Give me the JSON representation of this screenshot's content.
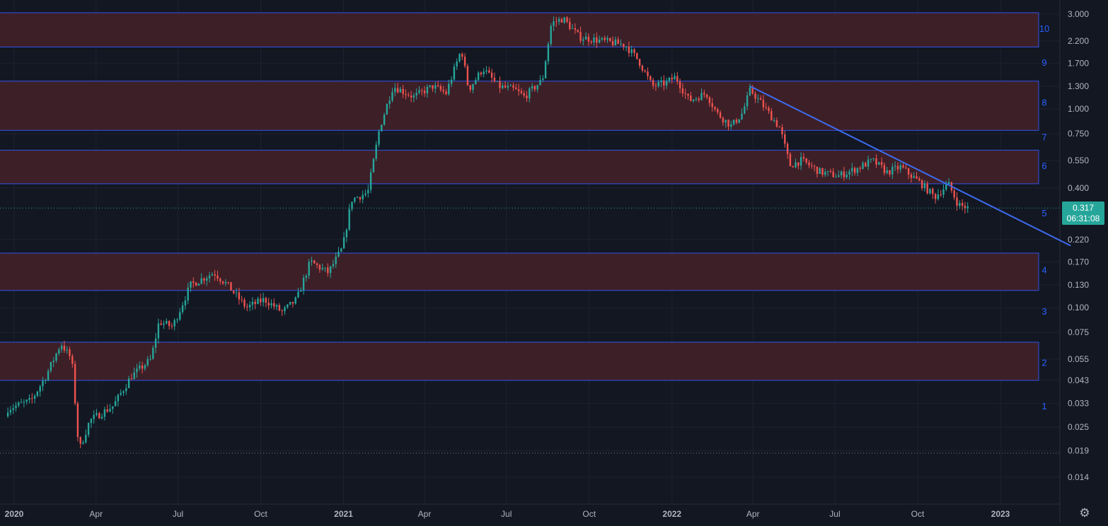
{
  "chart_data": {
    "type": "candlestick",
    "y_scale": "log",
    "grid": true,
    "y_ticks": [
      "3.000",
      "2.200",
      "1.700",
      "1.300",
      "1.000",
      "0.750",
      "0.550",
      "0.400",
      "0.220",
      "0.170",
      "0.130",
      "0.100",
      "0.075",
      "0.055",
      "0.043",
      "0.033",
      "0.025",
      "0.019",
      "0.014"
    ],
    "x_ticks": [
      {
        "label": "2020",
        "date": "2020-01-01",
        "bold": true
      },
      {
        "label": "Apr",
        "date": "2020-04-01",
        "bold": false
      },
      {
        "label": "Jul",
        "date": "2020-07-01",
        "bold": false
      },
      {
        "label": "Oct",
        "date": "2020-10-01",
        "bold": false
      },
      {
        "label": "2021",
        "date": "2021-01-01",
        "bold": true
      },
      {
        "label": "Apr",
        "date": "2021-04-01",
        "bold": false
      },
      {
        "label": "Jul",
        "date": "2021-07-01",
        "bold": false
      },
      {
        "label": "Oct",
        "date": "2021-10-01",
        "bold": false
      },
      {
        "label": "2022",
        "date": "2022-01-01",
        "bold": true
      },
      {
        "label": "Apr",
        "date": "2022-04-01",
        "bold": false
      },
      {
        "label": "Jul",
        "date": "2022-07-01",
        "bold": false
      },
      {
        "label": "Oct",
        "date": "2022-10-01",
        "bold": false
      },
      {
        "label": "2023",
        "date": "2023-01-01",
        "bold": true
      }
    ],
    "price_path": [
      [
        "2019-12-25",
        0.031
      ],
      [
        "2020-01-20",
        0.034
      ],
      [
        "2020-02-05",
        0.045
      ],
      [
        "2020-02-22",
        0.066
      ],
      [
        "2020-03-05",
        0.055
      ],
      [
        "2020-03-13",
        0.019
      ],
      [
        "2020-03-25",
        0.027
      ],
      [
        "2020-04-20",
        0.032
      ],
      [
        "2020-05-10",
        0.045
      ],
      [
        "2020-06-01",
        0.055
      ],
      [
        "2020-06-10",
        0.085
      ],
      [
        "2020-06-25",
        0.08
      ],
      [
        "2020-07-15",
        0.13
      ],
      [
        "2020-08-10",
        0.15
      ],
      [
        "2020-08-25",
        0.13
      ],
      [
        "2020-09-15",
        0.1
      ],
      [
        "2020-10-05",
        0.11
      ],
      [
        "2020-10-25",
        0.095
      ],
      [
        "2020-11-10",
        0.11
      ],
      [
        "2020-11-25",
        0.17
      ],
      [
        "2020-12-15",
        0.15
      ],
      [
        "2020-12-31",
        0.2
      ],
      [
        "2021-01-10",
        0.35
      ],
      [
        "2021-01-28",
        0.38
      ],
      [
        "2021-02-10",
        0.8
      ],
      [
        "2021-02-25",
        1.3
      ],
      [
        "2021-03-20",
        1.15
      ],
      [
        "2021-04-10",
        1.3
      ],
      [
        "2021-04-25",
        1.2
      ],
      [
        "2021-05-12",
        2.0
      ],
      [
        "2021-05-20",
        1.25
      ],
      [
        "2021-06-05",
        1.6
      ],
      [
        "2021-06-22",
        1.3
      ],
      [
        "2021-07-10",
        1.25
      ],
      [
        "2021-07-21",
        1.15
      ],
      [
        "2021-08-10",
        1.4
      ],
      [
        "2021-08-20",
        2.7
      ],
      [
        "2021-09-02",
        2.85
      ],
      [
        "2021-09-20",
        2.3
      ],
      [
        "2021-10-15",
        2.2
      ],
      [
        "2021-11-10",
        2.1
      ],
      [
        "2021-11-25",
        1.75
      ],
      [
        "2021-12-10",
        1.3
      ],
      [
        "2021-12-25",
        1.35
      ],
      [
        "2022-01-05",
        1.45
      ],
      [
        "2022-01-20",
        1.1
      ],
      [
        "2022-02-08",
        1.2
      ],
      [
        "2022-02-20",
        0.95
      ],
      [
        "2022-03-08",
        0.82
      ],
      [
        "2022-03-20",
        0.95
      ],
      [
        "2022-03-29",
        1.25
      ],
      [
        "2022-04-15",
        1.0
      ],
      [
        "2022-05-01",
        0.8
      ],
      [
        "2022-05-12",
        0.52
      ],
      [
        "2022-05-25",
        0.55
      ],
      [
        "2022-06-15",
        0.48
      ],
      [
        "2022-07-05",
        0.46
      ],
      [
        "2022-07-25",
        0.5
      ],
      [
        "2022-08-12",
        0.55
      ],
      [
        "2022-08-28",
        0.48
      ],
      [
        "2022-09-12",
        0.51
      ],
      [
        "2022-10-05",
        0.42
      ],
      [
        "2022-10-20",
        0.36
      ],
      [
        "2022-11-04",
        0.42
      ],
      [
        "2022-11-15",
        0.33
      ],
      [
        "2022-11-26",
        0.317
      ]
    ],
    "zones": [
      {
        "label": "10",
        "low": 2.05,
        "high": 3.05
      },
      {
        "label": "8",
        "low": 0.78,
        "high": 1.38
      },
      {
        "label": "6",
        "low": 0.42,
        "high": 0.62
      },
      {
        "label": "4",
        "low": 0.122,
        "high": 0.188
      },
      {
        "label": "2",
        "low": 0.043,
        "high": 0.067
      }
    ],
    "level_numbers": [
      {
        "label": "10",
        "price": 2.55
      },
      {
        "label": "9",
        "price": 1.72
      },
      {
        "label": "8",
        "price": 1.08
      },
      {
        "label": "7",
        "price": 0.725
      },
      {
        "label": "6",
        "price": 0.52
      },
      {
        "label": "5",
        "price": 0.3
      },
      {
        "label": "4",
        "price": 0.155
      },
      {
        "label": "3",
        "price": 0.096
      },
      {
        "label": "2",
        "price": 0.053
      },
      {
        "label": "1",
        "price": 0.032
      }
    ],
    "trendline": {
      "start": [
        "2022-03-29",
        1.3
      ],
      "end": [
        "2023-03-20",
        0.205
      ]
    },
    "current_price": {
      "value": 0.317,
      "label": "0.317",
      "countdown": "06:31:08"
    },
    "low_marker": 0.0185,
    "colors": {
      "up": "#26a69a",
      "down": "#ef5350",
      "zone_fill": "#3d1f27",
      "zone_border": "#2f54eb",
      "trendline": "#3d6bf0",
      "level_text": "#2962ff",
      "axis_text": "#b2b5be",
      "grid": "#1e2230"
    }
  },
  "ui": {
    "settings_icon": "gear-icon",
    "settings_glyph": "⚙"
  }
}
